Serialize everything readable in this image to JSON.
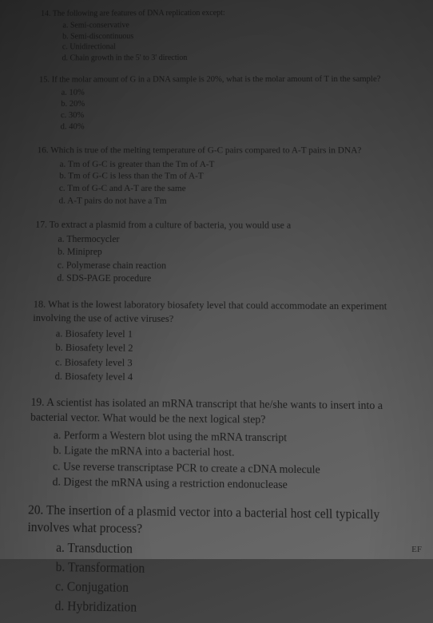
{
  "questions": [
    {
      "num": "14",
      "text": "The following are features of DNA replication except:",
      "options": [
        "a. Semi-conservative",
        "b. Semi-discontinuous",
        "c. Unidirectional",
        "d. Chain growth in the 5' to 3' direction"
      ]
    },
    {
      "num": "15",
      "text": "If the molar amount of G in a DNA sample is 20%, what is the molar amount of T in the sample?",
      "options": [
        "a. 10%",
        "b. 20%",
        "c. 30%",
        "d. 40%"
      ]
    },
    {
      "num": "16",
      "text": "Which is true of the melting temperature of G-C pairs compared to A-T pairs in DNA?",
      "options": [
        "a. Tm of G-C is greater than the Tm of A-T",
        "b. Tm of G-C is less than the Tm of A-T",
        "c. Tm of G-C and A-T are the same",
        "d. A-T pairs do not have a Tm"
      ]
    },
    {
      "num": "17",
      "text": "To extract a plasmid from a culture of bacteria, you would use a",
      "options": [
        "a. Thermocycler",
        "b. Miniprep",
        "c. Polymerase chain reaction",
        "d. SDS-PAGE procedure"
      ]
    },
    {
      "num": "18",
      "text": "What is the lowest laboratory biosafety level that could accommodate an experiment involving the use of active viruses?",
      "options": [
        "a. Biosafety level 1",
        "b. Biosafety level 2",
        "c. Biosafety level 3",
        "d. Biosafety level 4"
      ]
    },
    {
      "num": "19",
      "text": "A scientist has isolated an mRNA transcript that he/she wants to insert into a bacterial vector. What would be the next logical step?",
      "options": [
        "a. Perform a Western blot using the mRNA transcript",
        "b. Ligate the mRNA into a bacterial host.",
        "c. Use reverse transcriptase PCR to create a cDNA molecule",
        "d. Digest the mRNA using a restriction endonuclease"
      ]
    },
    {
      "num": "20",
      "text": "The insertion of a plasmid vector into a bacterial host cell typically involves what process?",
      "options": [
        "a. Transduction",
        "b. Transformation",
        "c. Conjugation",
        "d. Hybridization"
      ]
    }
  ],
  "corner": "EF"
}
